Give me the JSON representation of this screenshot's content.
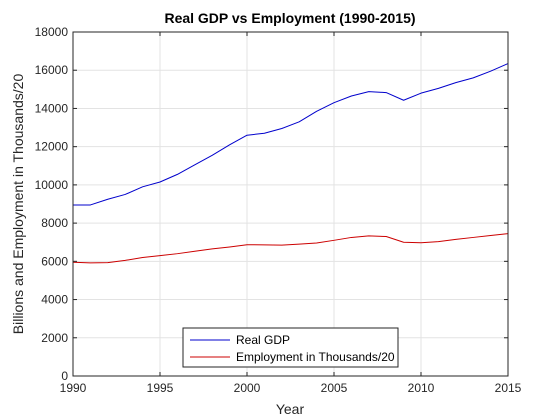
{
  "chart_data": {
    "type": "line",
    "title": "Real GDP vs Employment (1990-2015)",
    "xlabel": "Year",
    "ylabel": "Billions and Employment in Thousands/20",
    "xlim": [
      1990,
      2015
    ],
    "ylim": [
      0,
      18000
    ],
    "xticks": [
      1990,
      1995,
      2000,
      2005,
      2010,
      2015
    ],
    "yticks": [
      0,
      2000,
      4000,
      6000,
      8000,
      10000,
      12000,
      14000,
      16000,
      18000
    ],
    "grid": true,
    "legend_position": "bottom-center",
    "x": [
      1990,
      1991,
      1992,
      1993,
      1994,
      1995,
      1996,
      1997,
      1998,
      1999,
      2000,
      2001,
      2002,
      2003,
      2004,
      2005,
      2006,
      2007,
      2008,
      2009,
      2010,
      2011,
      2012,
      2013,
      2014,
      2015
    ],
    "series": [
      {
        "name": "Real GDP",
        "color": "#0000cc",
        "values": [
          8950,
          8950,
          9250,
          9500,
          9900,
          10150,
          10550,
          11050,
          11550,
          12100,
          12600,
          12700,
          12950,
          13300,
          13850,
          14300,
          14650,
          14880,
          14830,
          14430,
          14800,
          15050,
          15350,
          15600,
          15950,
          16350
        ]
      },
      {
        "name": "Employment in Thousands/20",
        "color": "#cc0000",
        "values": [
          5950,
          5920,
          5930,
          6050,
          6200,
          6300,
          6400,
          6530,
          6650,
          6750,
          6870,
          6860,
          6850,
          6900,
          6960,
          7100,
          7250,
          7330,
          7300,
          7000,
          6970,
          7030,
          7150,
          7250,
          7350,
          7450
        ]
      }
    ]
  }
}
